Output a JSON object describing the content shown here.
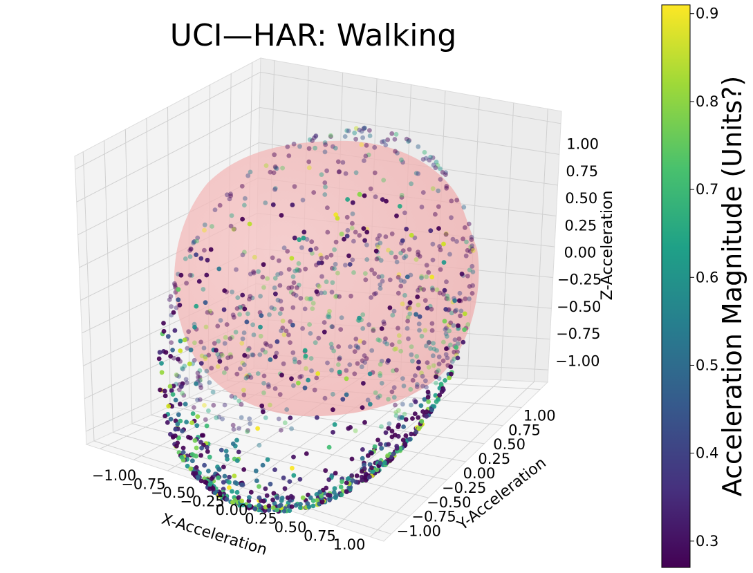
{
  "chart_data": {
    "type": "scatter",
    "title": "UCI—HAR: Walking",
    "xlabel": "X-Acceleration",
    "ylabel": "Y-Acceleration",
    "zlabel": "Z-Acceleration",
    "xlim": [
      -1.1,
      1.1
    ],
    "ylim": [
      -1.1,
      1.1
    ],
    "zlim": [
      -1.1,
      1.1
    ],
    "x_ticks": [
      "−1.00",
      "−0.75",
      "−0.50",
      "−0.25",
      "0.00",
      "0.25",
      "0.50",
      "0.75",
      "1.00"
    ],
    "y_ticks": [
      "−1.00",
      "−0.75",
      "−0.50",
      "−0.25",
      "0.00",
      "0.25",
      "0.50",
      "0.75",
      "1.00"
    ],
    "z_ticks": [
      "−1.00",
      "−0.75",
      "−0.50",
      "−0.25",
      "0.00",
      "0.25",
      "0.50",
      "0.75",
      "1.00"
    ],
    "tick_values": [
      -1,
      -0.75,
      -0.5,
      -0.25,
      0,
      0.25,
      0.5,
      0.75,
      1
    ],
    "grid": true,
    "sphere": {
      "radius": 1,
      "color": "#f4b6b6"
    },
    "colorbar": {
      "label": "Acceleration Magnitude (Units?)",
      "colormap": "viridis",
      "range": [
        0.27,
        0.91
      ],
      "ticks": [
        "0.3",
        "0.4",
        "0.5",
        "0.6",
        "0.7",
        "0.8",
        "0.9"
      ],
      "tick_values": [
        0.3,
        0.4,
        0.5,
        0.6,
        0.7,
        0.8,
        0.9
      ]
    },
    "points": {
      "count": 1400,
      "magnitude_range": [
        0.27,
        0.91
      ]
    }
  }
}
